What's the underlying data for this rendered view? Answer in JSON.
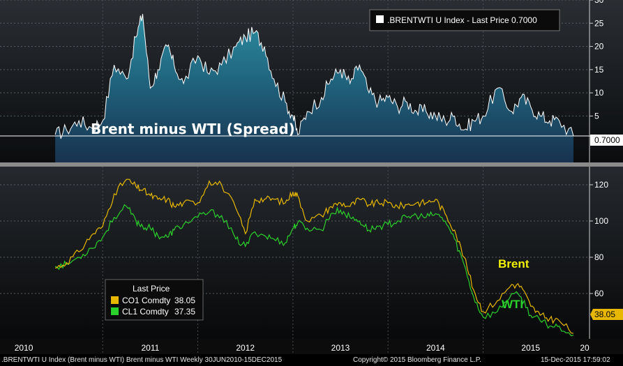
{
  "chart_data": [
    {
      "type": "area",
      "annotation": "Brent minus WTI (Spread)",
      "legend": {
        "label": ".BRENTWTI U Index - Last Price 0.7000",
        "placement": "top-right"
      },
      "last_value_label": "0.7000",
      "ylim": [
        -5,
        30
      ],
      "yticks": [
        5,
        10,
        15,
        20,
        25,
        30
      ],
      "x": [
        2010.5,
        2010.62,
        2010.75,
        2010.88,
        2011.0,
        2011.12,
        2011.25,
        2011.35,
        2011.42,
        2011.5,
        2011.58,
        2011.68,
        2011.75,
        2011.85,
        2012.0,
        2012.12,
        2012.25,
        2012.4,
        2012.5,
        2012.6,
        2012.7,
        2012.8,
        2012.92,
        2013.0,
        2013.05,
        2013.15,
        2013.3,
        2013.4,
        2013.5,
        2013.6,
        2013.7,
        2013.8,
        2013.9,
        2014.0,
        2014.1,
        2014.2,
        2014.3,
        2014.4,
        2014.5,
        2014.6,
        2014.7,
        2014.8,
        2014.9,
        2015.0,
        2015.15,
        2015.3,
        2015.4,
        2015.5,
        2015.6,
        2015.7,
        2015.8,
        2015.95
      ],
      "values": [
        1,
        2,
        4,
        2.5,
        4,
        16,
        13,
        22,
        27,
        11,
        15,
        20,
        16,
        12,
        18,
        14,
        16,
        20,
        22,
        23,
        20,
        13,
        8,
        5,
        1,
        6,
        9,
        13,
        15,
        12,
        16,
        10,
        8,
        9,
        7,
        8,
        6,
        6,
        5,
        4,
        5,
        2,
        4,
        5,
        11,
        6,
        9,
        7,
        5,
        4,
        4,
        0.7
      ]
    },
    {
      "type": "line",
      "legend": {
        "title": "Last Price",
        "placement": "bottom-left"
      },
      "ylim": [
        35,
        130
      ],
      "yticks": [
        60,
        80,
        100,
        120
      ],
      "last_value_label": "38.05",
      "x": [
        2010.5,
        2010.62,
        2010.75,
        2010.88,
        2011.0,
        2011.12,
        2011.25,
        2011.35,
        2011.42,
        2011.5,
        2011.58,
        2011.68,
        2011.75,
        2011.85,
        2012.0,
        2012.12,
        2012.25,
        2012.4,
        2012.5,
        2012.6,
        2012.7,
        2012.8,
        2012.92,
        2013.0,
        2013.05,
        2013.15,
        2013.3,
        2013.4,
        2013.5,
        2013.6,
        2013.7,
        2013.8,
        2013.9,
        2014.0,
        2014.1,
        2014.2,
        2014.3,
        2014.4,
        2014.5,
        2014.6,
        2014.7,
        2014.8,
        2014.9,
        2015.0,
        2015.15,
        2015.3,
        2015.4,
        2015.5,
        2015.6,
        2015.7,
        2015.8,
        2015.95
      ],
      "series": [
        {
          "name": "CO1 Comdty",
          "last_price": "38.05",
          "color": "#e8b800",
          "values": [
            74,
            77,
            83,
            92,
            97,
            115,
            123,
            119,
            117,
            114,
            112,
            112,
            108,
            110,
            110,
            122,
            120,
            107,
            93,
            112,
            112,
            112,
            110,
            116,
            114,
            100,
            103,
            108,
            110,
            108,
            112,
            109,
            110,
            110,
            108,
            109,
            110,
            110,
            112,
            104,
            95,
            80,
            62,
            50,
            56,
            65,
            64,
            53,
            48,
            46,
            45,
            38
          ]
        },
        {
          "name": "CL1 Comdty",
          "last_price": "37.35",
          "color": "#2bd12b",
          "values": [
            75,
            76,
            80,
            85,
            91,
            102,
            108,
            100,
            97,
            96,
            92,
            91,
            95,
            98,
            102,
            105,
            103,
            90,
            86,
            94,
            92,
            90,
            88,
            96,
            99,
            96,
            95,
            104,
            106,
            102,
            100,
            95,
            97,
            98,
            100,
            102,
            103,
            102,
            104,
            100,
            90,
            76,
            58,
            47,
            50,
            60,
            58,
            48,
            45,
            42,
            42,
            37
          ]
        }
      ],
      "annotations": [
        {
          "text": "Brent",
          "color": "#f2f200"
        },
        {
          "text": "WTI",
          "color": "#2bd12b"
        }
      ]
    }
  ],
  "x_axis": {
    "labels": [
      "2010",
      "2011",
      "2012",
      "2013",
      "2014",
      "2015",
      "20"
    ]
  },
  "footer": {
    "left": ".BRENTWTI U Index (Brent minus WTI) Brent minus WTI  Weekly 30JUN2010-15DEC2015",
    "center": "Copyright© 2015 Bloomberg Finance L.P.",
    "right": "15-Dec-2015 17:59:02"
  }
}
